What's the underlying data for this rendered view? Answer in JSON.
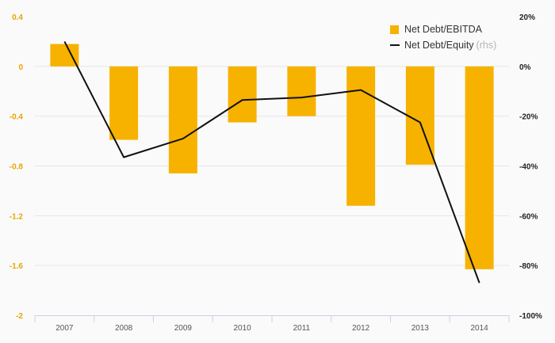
{
  "chart_data": {
    "type": "bar+line",
    "categories": [
      "2007",
      "2008",
      "2009",
      "2010",
      "2011",
      "2012",
      "2013",
      "2014"
    ],
    "series": [
      {
        "name": "Net Debt/EBITDA",
        "type": "bar",
        "axis": "left",
        "color": "#f7b200",
        "values": [
          0.18,
          -0.59,
          -0.86,
          -0.45,
          -0.4,
          -1.12,
          -0.79,
          -1.63
        ]
      },
      {
        "name": "Net Debt/Equity",
        "type": "line",
        "axis": "right",
        "color": "#111111",
        "values": [
          10,
          -36.5,
          -29,
          -13.5,
          -12.5,
          -9.5,
          -22.5,
          -87
        ]
      }
    ],
    "left_axis": {
      "min": -2,
      "max": 0.4,
      "ticks": [
        0.4,
        0,
        -0.4,
        -0.8,
        -1.2,
        -1.6,
        -2
      ],
      "tick_labels": [
        "0.4",
        "0",
        "-0.4",
        "-0.8",
        "-1.2",
        "-1.6",
        "-2"
      ]
    },
    "right_axis": {
      "min": -100,
      "max": 20,
      "ticks": [
        20,
        0,
        -20,
        -40,
        -60,
        -80,
        -100
      ],
      "tick_labels": [
        "20%",
        "0%",
        "-20%",
        "-40%",
        "-60%",
        "-80%",
        "-100%"
      ]
    },
    "legend": {
      "bar_label": "Net Debt/EBITDA",
      "line_label": "Net Debt/Equity",
      "line_suffix": "(rhs)",
      "position": "top-right"
    },
    "colors": {
      "bar": "#f7b200",
      "line": "#111111",
      "left_tick": "#e8a400",
      "right_tick": "#222222",
      "grid": "#e6e6e6"
    }
  }
}
